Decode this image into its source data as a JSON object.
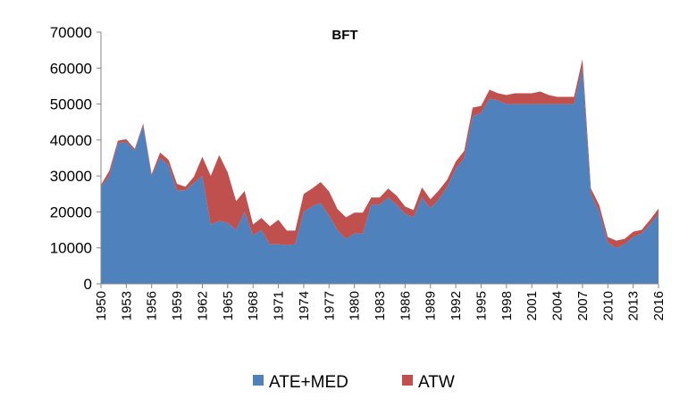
{
  "chart_data": {
    "type": "area",
    "stacked": true,
    "title": "BFT",
    "xlabel": "",
    "ylabel": "",
    "ylim": [
      0,
      70000
    ],
    "yticks": [
      0,
      10000,
      20000,
      30000,
      40000,
      50000,
      60000,
      70000
    ],
    "yticks_text": [
      "0",
      "10000",
      "20000",
      "30000",
      "40000",
      "50000",
      "60000",
      "70000"
    ],
    "xticks": [
      1950,
      1953,
      1956,
      1959,
      1962,
      1965,
      1968,
      1971,
      1974,
      1977,
      1980,
      1983,
      1986,
      1989,
      1992,
      1995,
      1998,
      2001,
      2004,
      2007,
      2010,
      2013,
      2016
    ],
    "xticks_text": [
      "1950",
      "1953",
      "1956",
      "1959",
      "1962",
      "1965",
      "1968",
      "1971",
      "1974",
      "1977",
      "1980",
      "1983",
      "1986",
      "1989",
      "1992",
      "1995",
      "1998",
      "2001",
      "2004",
      "2007",
      "2010",
      "2013",
      "2016"
    ],
    "grid": false,
    "legend_position": "bottom",
    "x": [
      1950,
      1951,
      1952,
      1953,
      1954,
      1955,
      1956,
      1957,
      1958,
      1959,
      1960,
      1961,
      1962,
      1963,
      1964,
      1965,
      1966,
      1967,
      1968,
      1969,
      1970,
      1971,
      1972,
      1973,
      1974,
      1975,
      1976,
      1977,
      1978,
      1979,
      1980,
      1981,
      1982,
      1983,
      1984,
      1985,
      1986,
      1987,
      1988,
      1989,
      1990,
      1991,
      1992,
      1993,
      1994,
      1995,
      1996,
      1997,
      1998,
      1999,
      2000,
      2001,
      2002,
      2003,
      2004,
      2005,
      2006,
      2007,
      2008,
      2009,
      2010,
      2011,
      2012,
      2013,
      2014,
      2015,
      2016
    ],
    "series": [
      {
        "name": "ATE+MED",
        "color": "#4F81BD",
        "values": [
          27000,
          30000,
          39000,
          39500,
          37000,
          44000,
          30000,
          35000,
          33000,
          26000,
          26000,
          28000,
          30000,
          16500,
          17500,
          17000,
          15000,
          20000,
          13500,
          15000,
          11000,
          11000,
          10800,
          11000,
          20000,
          21500,
          22500,
          19000,
          15000,
          12500,
          14000,
          14000,
          22000,
          22000,
          24000,
          22000,
          19500,
          18500,
          24000,
          21000,
          23500,
          27000,
          32000,
          35000,
          46500,
          47500,
          51500,
          51000,
          50000,
          50000,
          50000,
          50000,
          50000,
          50000,
          50000,
          50000,
          50000,
          60000,
          25000,
          20000,
          11500,
          10000,
          11000,
          13000,
          14000,
          16500,
          19500
        ]
      },
      {
        "name": "ATW",
        "color": "#C0504D",
        "values": [
          500,
          1500,
          800,
          700,
          500,
          600,
          500,
          1500,
          1500,
          1800,
          1000,
          1800,
          5300,
          13500,
          18300,
          14000,
          8000,
          5800,
          3000,
          3300,
          5000,
          6800,
          4000,
          3800,
          5000,
          5000,
          5800,
          6700,
          5800,
          6000,
          5800,
          5800,
          2000,
          2000,
          2500,
          2500,
          2000,
          2000,
          2800,
          2500,
          2500,
          2000,
          2000,
          2000,
          2500,
          2000,
          2500,
          2000,
          2500,
          3000,
          3000,
          3000,
          3500,
          2500,
          2000,
          2000,
          2000,
          2500,
          1500,
          1800,
          1500,
          2000,
          1500,
          1500,
          1000,
          1300,
          1400
        ]
      }
    ]
  }
}
